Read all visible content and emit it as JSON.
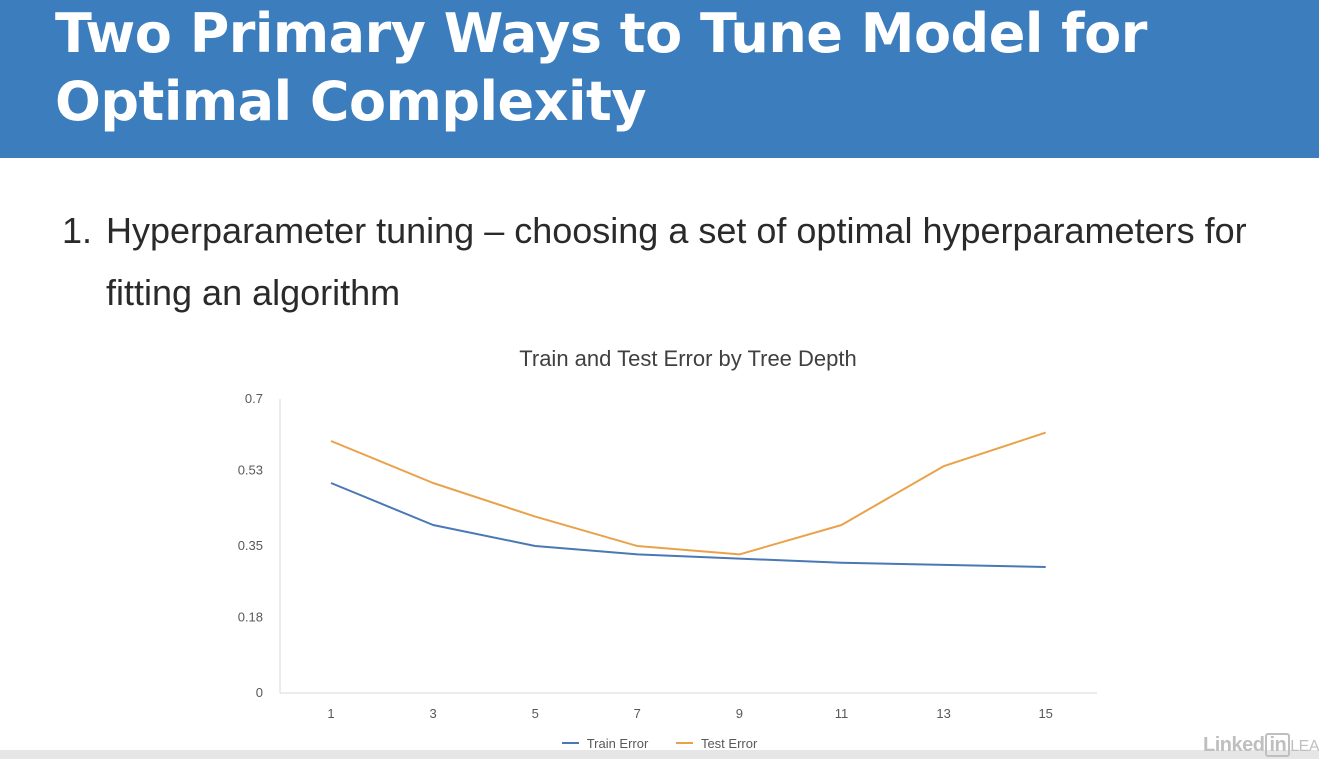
{
  "slide": {
    "title": "Two Primary Ways to Tune Model for\nOptimal Complexity",
    "bullet_number": "1.",
    "bullet_text": "Hyperparameter tuning – choosing a set of optimal hyperparameters for fitting an algorithm"
  },
  "watermark": {
    "brand": "Linked",
    "brand_box": "in",
    "suffix": "LEA"
  },
  "colors": {
    "header_bg": "#3b7dbd",
    "train_series": "#4a78b5",
    "test_series": "#e9a24a",
    "axis": "#d9d9d9",
    "tick_text": "#595959"
  },
  "chart_data": {
    "type": "line",
    "title": "Train and Test Error by Tree Depth",
    "x": [
      "1",
      "3",
      "5",
      "7",
      "9",
      "11",
      "13",
      "15"
    ],
    "series": [
      {
        "name": "Train Error",
        "values": [
          0.5,
          0.4,
          0.35,
          0.33,
          0.32,
          0.31,
          0.305,
          0.3
        ]
      },
      {
        "name": "Test Error",
        "values": [
          0.6,
          0.5,
          0.42,
          0.35,
          0.33,
          0.4,
          0.54,
          0.62
        ]
      }
    ],
    "y_ticks": [
      "0",
      "0.18",
      "0.35",
      "0.53",
      "0.7"
    ],
    "ylim": [
      0,
      0.7
    ],
    "grid": false,
    "legend_position": "bottom"
  }
}
